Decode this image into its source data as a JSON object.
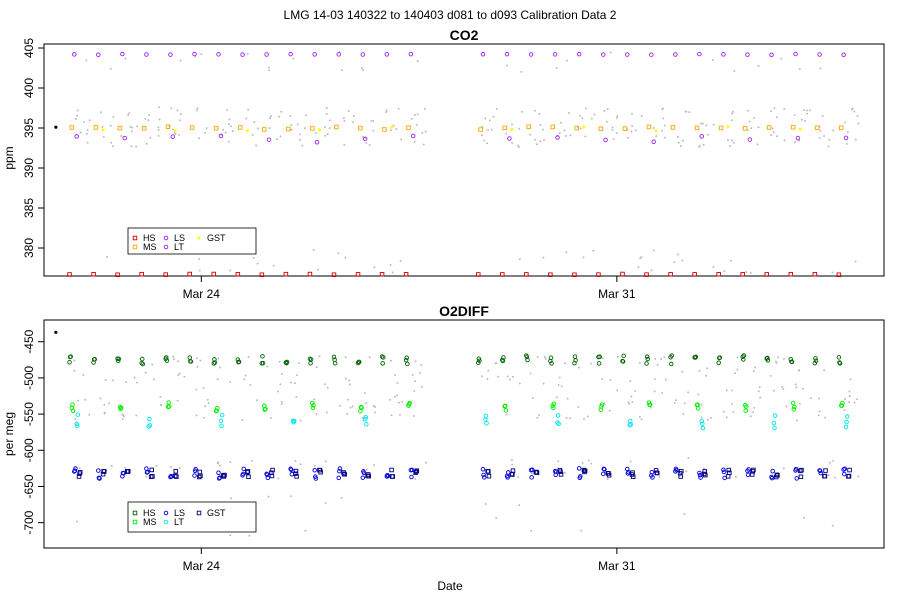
{
  "figure": {
    "title": "LMG   14-03    140322 to 140403    d081 to d093   Calibration Data 2",
    "xlabel": "Date",
    "colors": {
      "HS": "#cc0000",
      "MS": "#ffa500",
      "LS": "#a020f0",
      "LT": "#a020f0",
      "GST": "#ffff00",
      "background": "#bdbdbd"
    }
  },
  "chart_data": [
    {
      "type": "scatter",
      "title": "CO2",
      "ylabel": "ppm",
      "xlabel": "",
      "x_ticks": [
        {
          "label": "Mar 24",
          "day": 24
        },
        {
          "label": "Mar 31",
          "day": 31
        }
      ],
      "xlim": [
        21.35,
        35.5
      ],
      "ylim": [
        376.5,
        405.5
      ],
      "y_ticks": [
        380,
        385,
        390,
        395,
        400,
        405
      ],
      "gap": [
        27.6,
        28.6
      ],
      "legend": {
        "placement": "bottom-left",
        "entries": [
          {
            "label": "HS",
            "color": "#cc0000",
            "marker": "square"
          },
          {
            "label": "MS",
            "color": "#ffa500",
            "marker": "square"
          },
          {
            "label": "LS",
            "color": "#a020f0",
            "marker": "circle"
          },
          {
            "label": "LT",
            "color": "#a020f0",
            "marker": "circle"
          },
          {
            "label": "GST",
            "color": "#ffff00",
            "marker": "dot"
          }
        ]
      },
      "series": [
        {
          "name": "HS",
          "color": "#cc0000",
          "marker": "square",
          "y": 376.7,
          "spread": 0.05
        },
        {
          "name": "MS",
          "color": "#ffa500",
          "marker": "square",
          "y": 395.0,
          "spread": 0.2
        },
        {
          "name": "LS",
          "color": "#a020f0",
          "marker": "circle",
          "y": 404.2,
          "spread": 0.05
        },
        {
          "name": "LT",
          "color": "#a020f0",
          "marker": "circle",
          "y": 393.6,
          "spread": 0.5
        },
        {
          "name": "GST",
          "color": "#ffff00",
          "marker": "dot",
          "y": 394.9,
          "spread": 0.3
        }
      ],
      "first_point": {
        "x": 21.55,
        "y": 395.1
      }
    },
    {
      "type": "scatter",
      "title": "O2DIFF",
      "ylabel": "per meg",
      "xlabel": "Date",
      "x_ticks": [
        {
          "label": "Mar 24",
          "day": 24
        },
        {
          "label": "Mar 31",
          "day": 31
        }
      ],
      "xlim": [
        21.35,
        35.5
      ],
      "ylim": [
        -735,
        -420
      ],
      "y_ticks": [
        -700,
        -650,
        -600,
        -550,
        -500,
        -450
      ],
      "gap": [
        27.6,
        28.6
      ],
      "legend": {
        "placement": "bottom-left",
        "entries": [
          {
            "label": "HS",
            "color": "#006400",
            "marker": "square"
          },
          {
            "label": "MS",
            "color": "#00ee00",
            "marker": "square"
          },
          {
            "label": "LS",
            "color": "#0000dd",
            "marker": "circle"
          },
          {
            "label": "LT",
            "color": "#00e5ee",
            "marker": "circle"
          },
          {
            "label": "GST",
            "color": "#000080",
            "marker": "square"
          }
        ]
      },
      "series": [
        {
          "name": "HS",
          "color": "#006400",
          "marker": "circle",
          "y": -475,
          "spread": 6
        },
        {
          "name": "MS",
          "color": "#00ee00",
          "marker": "circle",
          "y": -540,
          "spread": 6
        },
        {
          "name": "LS",
          "color": "#0000dd",
          "marker": "circle",
          "y": -632,
          "spread": 7
        },
        {
          "name": "LT",
          "color": "#00e5ee",
          "marker": "circle",
          "y": -560,
          "spread": 10
        },
        {
          "name": "GST",
          "color": "#000080",
          "marker": "square",
          "y": -632,
          "spread": 5
        }
      ],
      "first_point": {
        "x": 21.55,
        "y": -437
      }
    }
  ]
}
